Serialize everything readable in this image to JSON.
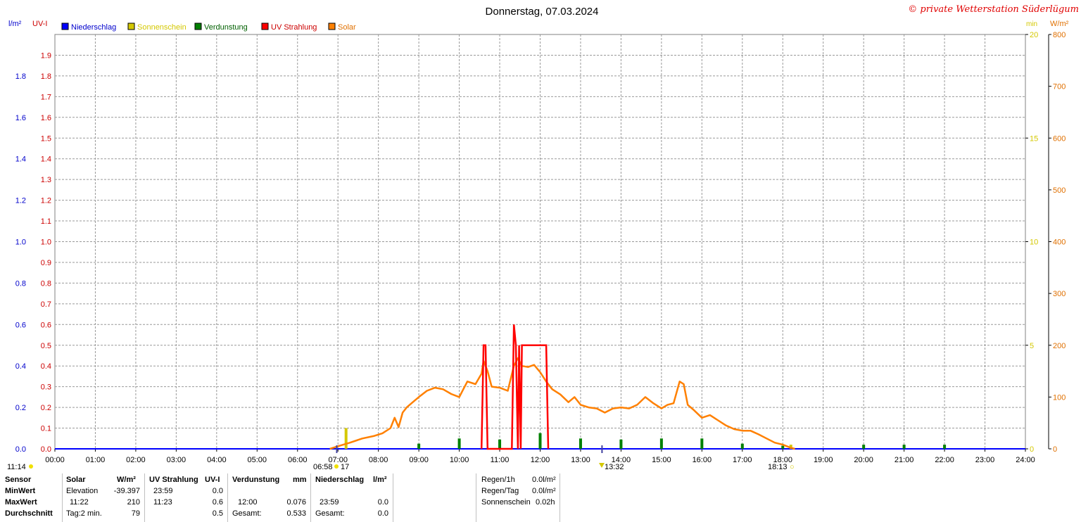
{
  "title": "Donnerstag, 07.03.2024",
  "copyright": "© private Wetterstation Süderlügum",
  "colors": {
    "niederschlag": "#0000ff",
    "sonnenschein": "#d4c800",
    "verdunstung": "#008000",
    "uv": "#ff0000",
    "solar": "#ff8000",
    "grid": "#999999",
    "axis_left_outer": "#0000cc",
    "axis_left_inner": "#cc0000",
    "axis_right_inner": "#d4c800",
    "axis_right_outer": "#e07000"
  },
  "axes": {
    "left_outer_unit": "l/m²",
    "left_inner_unit": "UV-I",
    "right_inner_unit": "min",
    "right_outer_unit": "W/m²",
    "left_outer_ticks": [
      "0.0",
      "0.2",
      "0.4",
      "0.6",
      "0.8",
      "1.0",
      "1.2",
      "1.4",
      "1.6",
      "1.8"
    ],
    "left_inner_ticks": [
      "0.0",
      "0.1",
      "0.2",
      "0.3",
      "0.4",
      "0.5",
      "0.6",
      "0.7",
      "0.8",
      "0.9",
      "1.0",
      "1.1",
      "1.2",
      "1.3",
      "1.4",
      "1.5",
      "1.6",
      "1.7",
      "1.8",
      "1.9"
    ],
    "right_inner_ticks": [
      "0",
      "5",
      "10",
      "15",
      "20"
    ],
    "right_outer_ticks": [
      "0",
      "100",
      "200",
      "300",
      "400",
      "500",
      "600",
      "700",
      "800"
    ],
    "x_ticks": [
      "00:00",
      "01:00",
      "02:00",
      "03:00",
      "04:00",
      "05:00",
      "06:00",
      "07:00",
      "08:00",
      "09:00",
      "10:00",
      "11:00",
      "12:00",
      "13:00",
      "14:00",
      "15:00",
      "16:00",
      "17:00",
      "18:00",
      "19:00",
      "20:00",
      "21:00",
      "22:00",
      "23:00",
      "24:00"
    ]
  },
  "markers": {
    "left": "11:14",
    "sunrise": "06:58",
    "sunrise_suffix": "17",
    "noon": "13:32",
    "sunset": "18:13"
  },
  "chart_data": {
    "type": "line",
    "title": "Donnerstag, 07.03.2024",
    "x_unit": "hour of day",
    "xlim": [
      0,
      24
    ],
    "legend_placement": "top-left",
    "grid": true,
    "series": [
      {
        "name": "Solar",
        "axis": "W/m²",
        "ylim": [
          0,
          800
        ],
        "points": [
          [
            6.8,
            0
          ],
          [
            7.0,
            5
          ],
          [
            7.3,
            12
          ],
          [
            7.6,
            20
          ],
          [
            7.9,
            25
          ],
          [
            8.1,
            30
          ],
          [
            8.3,
            40
          ],
          [
            8.4,
            60
          ],
          [
            8.5,
            42
          ],
          [
            8.6,
            70
          ],
          [
            8.7,
            80
          ],
          [
            8.85,
            90
          ],
          [
            9.0,
            100
          ],
          [
            9.2,
            112
          ],
          [
            9.4,
            118
          ],
          [
            9.6,
            115
          ],
          [
            9.8,
            106
          ],
          [
            10.0,
            100
          ],
          [
            10.1,
            115
          ],
          [
            10.2,
            130
          ],
          [
            10.4,
            125
          ],
          [
            10.55,
            145
          ],
          [
            10.6,
            170
          ],
          [
            10.7,
            150
          ],
          [
            10.8,
            120
          ],
          [
            11.0,
            118
          ],
          [
            11.2,
            112
          ],
          [
            11.35,
            160
          ],
          [
            11.45,
            175
          ],
          [
            11.55,
            160
          ],
          [
            11.7,
            158
          ],
          [
            11.85,
            162
          ],
          [
            12.0,
            148
          ],
          [
            12.15,
            130
          ],
          [
            12.3,
            115
          ],
          [
            12.5,
            105
          ],
          [
            12.7,
            90
          ],
          [
            12.85,
            100
          ],
          [
            13.0,
            85
          ],
          [
            13.2,
            80
          ],
          [
            13.4,
            78
          ],
          [
            13.6,
            70
          ],
          [
            13.8,
            78
          ],
          [
            14.0,
            80
          ],
          [
            14.2,
            78
          ],
          [
            14.4,
            85
          ],
          [
            14.6,
            100
          ],
          [
            14.8,
            88
          ],
          [
            15.0,
            78
          ],
          [
            15.15,
            85
          ],
          [
            15.3,
            88
          ],
          [
            15.45,
            130
          ],
          [
            15.55,
            125
          ],
          [
            15.65,
            85
          ],
          [
            15.8,
            75
          ],
          [
            16.0,
            60
          ],
          [
            16.2,
            65
          ],
          [
            16.4,
            55
          ],
          [
            16.6,
            45
          ],
          [
            16.8,
            38
          ],
          [
            17.0,
            35
          ],
          [
            17.2,
            35
          ],
          [
            17.4,
            28
          ],
          [
            17.6,
            20
          ],
          [
            17.8,
            12
          ],
          [
            18.0,
            8
          ],
          [
            18.2,
            2
          ],
          [
            18.3,
            0
          ]
        ]
      },
      {
        "name": "UV Strahlung",
        "axis": "UV-I",
        "ylim": [
          0,
          2
        ],
        "points": [
          [
            10.55,
            0
          ],
          [
            10.6,
            0.5
          ],
          [
            10.65,
            0.5
          ],
          [
            10.7,
            0
          ],
          [
            11.3,
            0
          ],
          [
            11.35,
            0.6
          ],
          [
            11.4,
            0.5
          ],
          [
            11.45,
            0
          ],
          [
            11.48,
            0.5
          ],
          [
            11.52,
            0
          ],
          [
            11.55,
            0.5
          ],
          [
            11.6,
            0.5
          ],
          [
            11.65,
            0.5
          ],
          [
            12.0,
            0.5
          ],
          [
            12.15,
            0.5
          ],
          [
            12.2,
            0
          ]
        ]
      },
      {
        "name": "Sonnenschein",
        "axis": "min",
        "ylim": [
          0,
          20
        ],
        "bars": [
          [
            7.2,
            1.0
          ],
          [
            18.2,
            0.2
          ]
        ]
      },
      {
        "name": "Verdunstung",
        "axis": "l/m²",
        "ylim": [
          0,
          2
        ],
        "bars": [
          [
            9.0,
            0.025
          ],
          [
            10.0,
            0.05
          ],
          [
            11.0,
            0.045
          ],
          [
            12.0,
            0.076
          ],
          [
            13.0,
            0.05
          ],
          [
            14.0,
            0.045
          ],
          [
            15.0,
            0.05
          ],
          [
            16.0,
            0.05
          ],
          [
            17.0,
            0.025
          ],
          [
            18.0,
            0.015
          ],
          [
            20.0,
            0.02
          ],
          [
            21.0,
            0.02
          ],
          [
            22.0,
            0.02
          ]
        ]
      },
      {
        "name": "Niederschlag",
        "axis": "l/m²",
        "ylim": [
          0,
          2
        ],
        "points": [
          [
            0,
            0
          ],
          [
            24,
            0
          ]
        ]
      }
    ]
  },
  "stats": {
    "headers": {
      "sensor": "Sensor",
      "solar": "Solar",
      "solar_unit": "W/m²",
      "uv": "UV Strahlung",
      "uv_unit": "UV-I",
      "verdunstung": "Verdunstung",
      "verdunstung_unit": "mm",
      "niederschlag": "Niederschlag",
      "niederschlag_unit": "l/m²"
    },
    "rows": {
      "min": "MinWert",
      "max": "MaxWert",
      "avg": "Durchschnitt"
    },
    "solar": {
      "min_label": "Elevation",
      "min_value": "-39.397",
      "max_time": "11:22",
      "max_value": "210",
      "avg_label": "Tag:2 min.",
      "avg_value": "79"
    },
    "uv": {
      "min_time": "23:59",
      "min_value": "0.0",
      "max_time": "11:23",
      "max_value": "0.6",
      "avg_value": "0.5"
    },
    "verdunstung": {
      "max_time": "12:00",
      "max_value": "0.076",
      "avg_label": "Gesamt:",
      "avg_value": "0.533"
    },
    "niederschlag": {
      "max_time": "23:59",
      "max_value": "0.0",
      "avg_label": "Gesamt:",
      "avg_value": "0.0"
    },
    "extra": {
      "regen_h_label": "Regen/1h",
      "regen_h_value": "0.0l/m²",
      "regen_tag_label": "Regen/Tag",
      "regen_tag_value": "0.0l/m²",
      "sonne_label": "Sonnenschein",
      "sonne_value": "0.02h"
    }
  }
}
